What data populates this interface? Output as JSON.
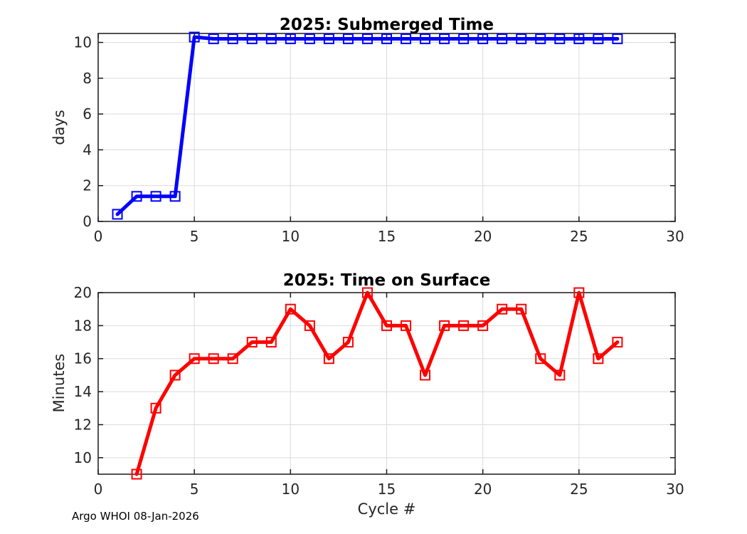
{
  "figure": {
    "background": "#ffffff",
    "axis_color": "#1a1a1a",
    "grid_color": "#dbdbdb",
    "tick_label_color": "#262626"
  },
  "footer": {
    "text": "Argo WHOI 08-Jan-2026"
  },
  "chart_data": [
    {
      "type": "line",
      "title": "2025: Submerged Time",
      "xlabel": "",
      "ylabel": "days",
      "x": [
        1,
        2,
        3,
        4,
        5,
        6,
        7,
        8,
        9,
        10,
        11,
        12,
        13,
        14,
        15,
        16,
        17,
        18,
        19,
        20,
        21,
        22,
        23,
        24,
        25,
        26,
        27
      ],
      "y": [
        0.4,
        1.4,
        1.4,
        1.4,
        10.3,
        10.2,
        10.2,
        10.2,
        10.2,
        10.2,
        10.2,
        10.2,
        10.2,
        10.2,
        10.2,
        10.2,
        10.2,
        10.2,
        10.2,
        10.2,
        10.2,
        10.2,
        10.2,
        10.2,
        10.2,
        10.2,
        10.2
      ],
      "xlim": [
        0,
        30
      ],
      "ylim": [
        0,
        10.5
      ],
      "xticks": [
        0,
        5,
        10,
        15,
        20,
        25,
        30
      ],
      "yticks": [
        0,
        2,
        4,
        6,
        8,
        10
      ],
      "line_color": "#0000ff",
      "line_width": 5,
      "marker": "square",
      "marker_size": 13,
      "grid": true,
      "legend": null
    },
    {
      "type": "line",
      "title": "2025: Time on Surface",
      "xlabel": "Cycle #",
      "ylabel": "Minutes",
      "x": [
        2,
        3,
        4,
        5,
        6,
        7,
        8,
        9,
        10,
        11,
        12,
        13,
        14,
        15,
        16,
        17,
        18,
        19,
        20,
        21,
        22,
        23,
        24,
        25,
        26,
        27
      ],
      "y": [
        9,
        13,
        15,
        16,
        16,
        16,
        17,
        17,
        19,
        18,
        16,
        17,
        20,
        18,
        18,
        15,
        18,
        18,
        18,
        19,
        19,
        16,
        15,
        20,
        16,
        17
      ],
      "xlim": [
        0,
        30
      ],
      "ylim": [
        9,
        20
      ],
      "xticks": [
        0,
        5,
        10,
        15,
        20,
        25,
        30
      ],
      "yticks": [
        10,
        12,
        14,
        16,
        18,
        20
      ],
      "line_color": "#ff0000",
      "line_width": 5,
      "marker": "square",
      "marker_size": 13,
      "grid": true,
      "legend": null
    }
  ]
}
